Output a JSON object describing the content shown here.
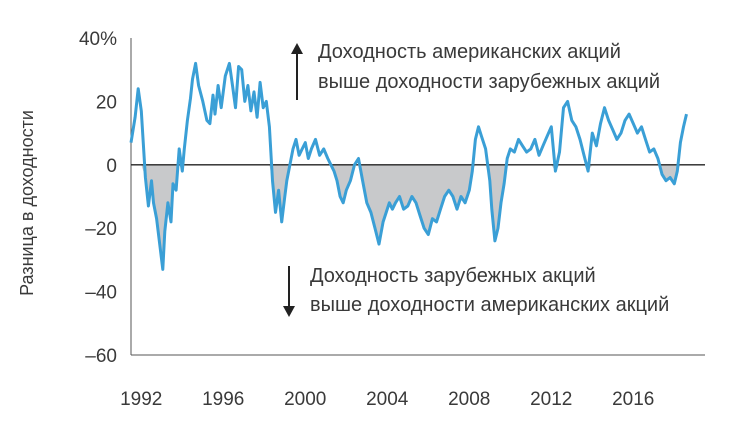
{
  "chart_data": {
    "type": "area",
    "ylabel": "Разница в доходности",
    "ylim": [
      -60,
      40
    ],
    "xlim": [
      1991.5,
      2019.5
    ],
    "yticks": [
      {
        "value": 40,
        "label": "40%"
      },
      {
        "value": 20,
        "label": "20"
      },
      {
        "value": 0,
        "label": "0"
      },
      {
        "value": -20,
        "label": "–20"
      },
      {
        "value": -40,
        "label": "–40"
      },
      {
        "value": -60,
        "label": "–60"
      }
    ],
    "xticks": [
      {
        "value": 1992,
        "label": "1992"
      },
      {
        "value": 1996,
        "label": "1996"
      },
      {
        "value": 2000,
        "label": "2000"
      },
      {
        "value": 2004,
        "label": "2004"
      },
      {
        "value": 2008,
        "label": "2008"
      },
      {
        "value": 2012,
        "label": "2012"
      },
      {
        "value": 2016,
        "label": "2016"
      }
    ],
    "grid": false,
    "annotations": {
      "up": [
        "Доходность американских акций",
        "выше доходности зарубежных акций"
      ],
      "down": [
        "Доходность зарубежных акций",
        "выше доходности американских акций"
      ]
    },
    "colors": {
      "line": "#3a9fd6",
      "fill": "#c8c9cb",
      "zero_line": "#222222",
      "axis": "#555555",
      "text": "#3a3a3a"
    },
    "series": [
      {
        "x": [
          1991.5,
          1991.7,
          1991.85,
          1992.0,
          1992.2,
          1992.35,
          1992.5,
          1992.6,
          1992.75,
          1992.9,
          1993.05,
          1993.15,
          1993.3,
          1993.45,
          1993.55,
          1993.7,
          1993.85,
          1994.0,
          1994.1,
          1994.25,
          1994.4,
          1994.5,
          1994.65,
          1994.8,
          1995.0,
          1995.2,
          1995.35,
          1995.5,
          1995.6,
          1995.75,
          1995.9,
          1996.1,
          1996.3,
          1996.45,
          1996.6,
          1996.75,
          1996.9,
          1997.05,
          1997.2,
          1997.35,
          1997.5,
          1997.65,
          1997.8,
          1997.95,
          1998.1,
          1998.25,
          1998.4,
          1998.55,
          1998.7,
          1998.85,
          1999.0,
          1999.1,
          1999.25,
          1999.4,
          1999.55,
          1999.7,
          1999.85,
          2000.0,
          2000.15,
          2000.3,
          2000.5,
          2000.7,
          2000.9,
          2001.1,
          2001.25,
          2001.4,
          2001.55,
          2001.7,
          2001.85,
          2002.0,
          2002.2,
          2002.4,
          2002.6,
          2002.8,
          2003.0,
          2003.2,
          2003.4,
          2003.6,
          2003.8,
          2003.95,
          2004.1,
          2004.25,
          2004.4,
          2004.6,
          2004.8,
          2005.0,
          2005.2,
          2005.4,
          2005.6,
          2005.8,
          2006.0,
          2006.2,
          2006.4,
          2006.6,
          2006.8,
          2007.0,
          2007.2,
          2007.4,
          2007.6,
          2007.8,
          2008.0,
          2008.15,
          2008.3,
          2008.45,
          2008.6,
          2008.8,
          2009.0,
          2009.1,
          2009.25,
          2009.4,
          2009.55,
          2009.7,
          2009.85,
          2010.0,
          2010.2,
          2010.4,
          2010.6,
          2010.8,
          2011.0,
          2011.2,
          2011.4,
          2011.6,
          2011.8,
          2012.0,
          2012.2,
          2012.4,
          2012.6,
          2012.8,
          2013.0,
          2013.2,
          2013.4,
          2013.6,
          2013.8,
          2014.0,
          2014.2,
          2014.4,
          2014.6,
          2014.8,
          2015.0,
          2015.2,
          2015.4,
          2015.6,
          2015.8,
          2016.0,
          2016.2,
          2016.4,
          2016.6,
          2016.8,
          2017.0,
          2017.2,
          2017.4,
          2017.6,
          2017.8,
          2018.0,
          2018.15,
          2018.3,
          2018.45,
          2018.6
        ],
        "y": [
          7,
          15,
          24,
          17,
          -4,
          -13,
          -5,
          -12,
          -17,
          -25,
          -33,
          -21,
          -12,
          -18,
          -6,
          -8,
          5,
          -2,
          5,
          14,
          21,
          27,
          32,
          25,
          20,
          14,
          13,
          22,
          16,
          25,
          18,
          28,
          32,
          25,
          18,
          31,
          30,
          20,
          25,
          17,
          23,
          15,
          26,
          18,
          20,
          12,
          -5,
          -15,
          -8,
          -18,
          -10,
          -5,
          0,
          5,
          8,
          3,
          5,
          7,
          2,
          5,
          8,
          3,
          5,
          2,
          0,
          -2,
          -5,
          -10,
          -12,
          -8,
          -5,
          0,
          2,
          -5,
          -12,
          -15,
          -20,
          -25,
          -18,
          -15,
          -12,
          -14,
          -12,
          -10,
          -14,
          -13,
          -10,
          -12,
          -16,
          -20,
          -22,
          -17,
          -18,
          -14,
          -10,
          -8,
          -10,
          -14,
          -10,
          -12,
          -8,
          -2,
          8,
          12,
          9,
          5,
          -5,
          -14,
          -24,
          -20,
          -12,
          -6,
          2,
          5,
          4,
          8,
          6,
          4,
          5,
          8,
          3,
          6,
          9,
          12,
          -2,
          4,
          18,
          20,
          14,
          12,
          8,
          3,
          -2,
          10,
          6,
          13,
          18,
          14,
          11,
          8,
          10,
          14,
          16,
          13,
          10,
          12,
          8,
          4,
          5,
          2,
          -3,
          -5,
          -4,
          -6,
          -2,
          7,
          12,
          16
        ]
      }
    ]
  }
}
